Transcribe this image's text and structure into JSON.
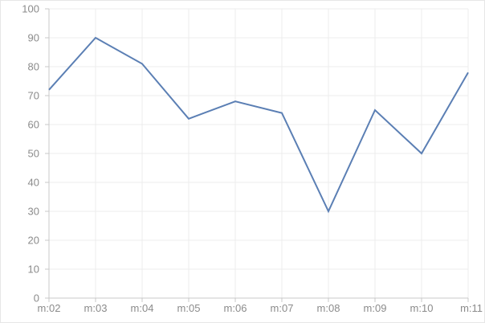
{
  "chart_data": {
    "type": "line",
    "categories": [
      "m:02",
      "m:03",
      "m:04",
      "m:05",
      "m:06",
      "m:07",
      "m:08",
      "m:09",
      "m:10",
      "m:11"
    ],
    "series": [
      {
        "values": [
          72,
          90,
          81,
          62,
          68,
          64,
          30,
          65,
          50,
          78
        ]
      }
    ],
    "title": "",
    "xlabel": "",
    "ylabel": "",
    "ylim": [
      0,
      100
    ],
    "yticks": [
      "0",
      "10",
      "20",
      "30",
      "40",
      "50",
      "60",
      "70",
      "80",
      "90",
      "100"
    ],
    "grid": true,
    "legend": "none",
    "colors": {
      "line": "#5b7fb4",
      "grid": "#ececec",
      "axis": "#c8c8c8",
      "tick_text": "#8b8b8b",
      "frame": "#e6e6e6"
    }
  }
}
